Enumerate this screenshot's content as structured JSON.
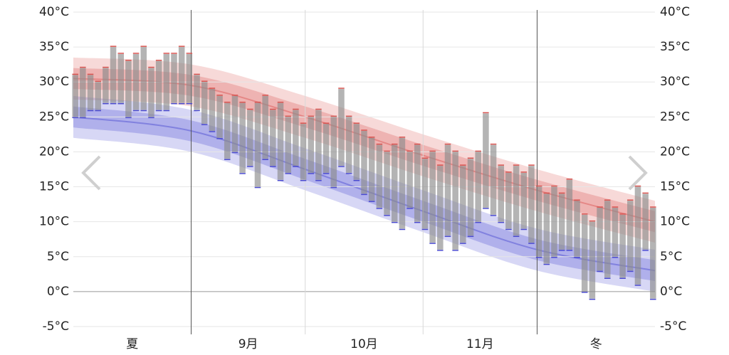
{
  "chart_data": {
    "type": "temperature-range",
    "xlim": [
      0,
      153
    ],
    "ylim": [
      -5,
      40
    ],
    "yticks": [
      {
        "value": -5,
        "label": "-5°C"
      },
      {
        "value": 0,
        "label": "0°C"
      },
      {
        "value": 5,
        "label": "5°C"
      },
      {
        "value": 10,
        "label": "10°C"
      },
      {
        "value": 15,
        "label": "15°C"
      },
      {
        "value": 20,
        "label": "20°C"
      },
      {
        "value": 25,
        "label": "25°C"
      },
      {
        "value": 30,
        "label": "30°C"
      },
      {
        "value": 35,
        "label": "35°C"
      },
      {
        "value": 40,
        "label": "40°C"
      }
    ],
    "periods": [
      {
        "label": "夏",
        "start": 0,
        "end": 31
      },
      {
        "label": "9月",
        "start": 31,
        "end": 61
      },
      {
        "label": "10月",
        "start": 61,
        "end": 92
      },
      {
        "label": "11月",
        "start": 92,
        "end": 122
      },
      {
        "label": "冬",
        "start": 122,
        "end": 153
      }
    ],
    "season_boundaries": [
      31,
      122
    ],
    "grid": true,
    "bar_color": "#8c8c8c",
    "high_color": "#d9534f",
    "low_color": "#4a4ad0",
    "x": [
      0.5,
      2.5,
      4.5,
      6.5,
      8.5,
      10.5,
      12.5,
      14.5,
      16.5,
      18.5,
      20.5,
      22.5,
      24.5,
      26.5,
      28.5,
      30.5,
      32.5,
      34.5,
      36.5,
      38.5,
      40.5,
      42.5,
      44.5,
      46.5,
      48.5,
      50.5,
      52.5,
      54.5,
      56.5,
      58.5,
      60.5,
      62.5,
      64.5,
      66.5,
      68.5,
      70.5,
      72.5,
      74.5,
      76.5,
      78.5,
      80.5,
      82.5,
      84.5,
      86.5,
      88.5,
      90.5,
      92.5,
      94.5,
      96.5,
      98.5,
      100.5,
      102.5,
      104.5,
      106.5,
      108.5,
      110.5,
      112.5,
      114.5,
      116.5,
      118.5,
      120.5,
      122.5,
      124.5,
      126.5,
      128.5,
      130.5,
      132.5,
      134.5,
      136.5,
      138.5,
      140.5,
      142.5,
      144.5,
      146.5,
      148.5,
      150.5,
      152.5
    ],
    "highs": [
      31,
      32,
      31,
      30,
      32,
      35,
      34,
      33,
      34,
      35,
      32,
      33,
      34,
      34,
      35,
      34,
      31,
      30,
      29,
      28,
      27,
      28,
      27,
      26,
      27,
      28,
      26,
      27,
      25,
      26,
      24,
      25,
      26,
      24,
      25,
      29,
      25,
      24,
      23,
      22,
      21,
      20,
      21,
      22,
      20,
      21,
      19,
      20,
      18,
      21,
      20,
      18,
      19,
      20,
      25.5,
      21,
      18,
      17,
      18,
      17,
      18,
      15,
      14,
      15,
      14,
      16,
      13,
      11,
      10,
      12,
      13,
      12,
      11,
      13,
      15,
      14,
      12
    ],
    "lows": [
      25,
      25,
      26,
      26,
      27,
      27,
      27,
      25,
      26,
      26,
      25,
      26,
      26,
      27,
      27,
      27,
      26,
      24,
      23,
      22,
      19,
      20,
      17,
      18,
      15,
      19,
      18,
      16,
      17,
      18,
      16,
      17,
      16,
      17,
      15,
      18,
      17,
      16,
      14,
      13,
      12,
      11,
      10,
      9,
      12,
      10,
      9,
      7,
      6,
      8,
      6,
      7,
      8,
      10,
      12,
      11,
      10,
      9,
      8,
      9,
      7,
      5,
      4,
      5,
      6,
      6,
      5,
      0,
      -1,
      3,
      2,
      5,
      2,
      3,
      1,
      6,
      -1
    ],
    "normal_high": {
      "x": [
        0,
        31,
        61,
        92,
        122,
        153
      ],
      "p10": [
        27.5,
        26.5,
        22,
        16.5,
        11.5,
        7
      ],
      "p25": [
        29,
        28,
        23.5,
        18,
        13,
        8.5
      ],
      "p50": [
        30.5,
        29.5,
        25,
        19.5,
        14.5,
        10
      ],
      "p75": [
        32,
        31,
        26.5,
        21,
        16,
        11.5
      ],
      "p90": [
        33.5,
        32.5,
        28,
        22.5,
        17.5,
        13
      ]
    },
    "normal_low": {
      "x": [
        0,
        31,
        61,
        92,
        122,
        153
      ],
      "p10": [
        22,
        20,
        14.5,
        8.5,
        3,
        0
      ],
      "p25": [
        23.5,
        21.5,
        16,
        10,
        4.5,
        1.5
      ],
      "p50": [
        25,
        23,
        17.5,
        11.5,
        6,
        3
      ],
      "p75": [
        26.5,
        24.5,
        19,
        13,
        7.5,
        4.5
      ],
      "p90": [
        28,
        26,
        20.5,
        14.5,
        9,
        6
      ]
    }
  }
}
